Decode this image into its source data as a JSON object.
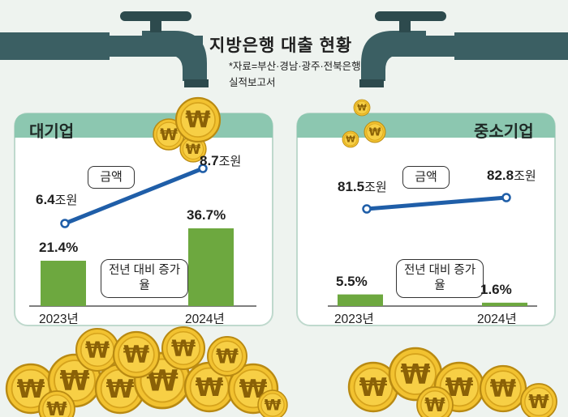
{
  "header": {
    "title": "지방은행 대출 현황",
    "source": "*자료=부산·경남·광주·전북은행 실적보고서"
  },
  "legend": {
    "amount_label": "금액",
    "growth_label": "전년 대비 증가율"
  },
  "colors": {
    "background": "#eef3ef",
    "panel_header": "#8cc7b0",
    "bar": "#6da83f",
    "line": "#1f5ea8",
    "coin": "#f2c230",
    "faucet": "#3b5f63"
  },
  "icons": [
    "faucet-icon",
    "won-coin-icon"
  ],
  "chart_data": [
    {
      "title": "대기업",
      "type": "bar+line",
      "categories": [
        "2023년",
        "2024년"
      ],
      "amount": {
        "name": "금액",
        "values": [
          6.4,
          8.7
        ],
        "labels": [
          "6.4조원",
          "8.7조원"
        ],
        "unit": "조원"
      },
      "growth": {
        "name": "전년 대비 증가율",
        "values": [
          21.4,
          36.7
        ],
        "labels": [
          "21.4%",
          "36.7%"
        ],
        "unit": "%"
      }
    },
    {
      "title": "중소기업",
      "type": "bar+line",
      "categories": [
        "2023년",
        "2024년"
      ],
      "amount": {
        "name": "금액",
        "values": [
          81.5,
          82.8
        ],
        "labels": [
          "81.5조원",
          "82.8조원"
        ],
        "unit": "조원"
      },
      "growth": {
        "name": "전년 대비 증가율",
        "values": [
          5.5,
          1.6
        ],
        "labels": [
          "5.5%",
          "1.6%"
        ],
        "unit": "%"
      }
    }
  ]
}
